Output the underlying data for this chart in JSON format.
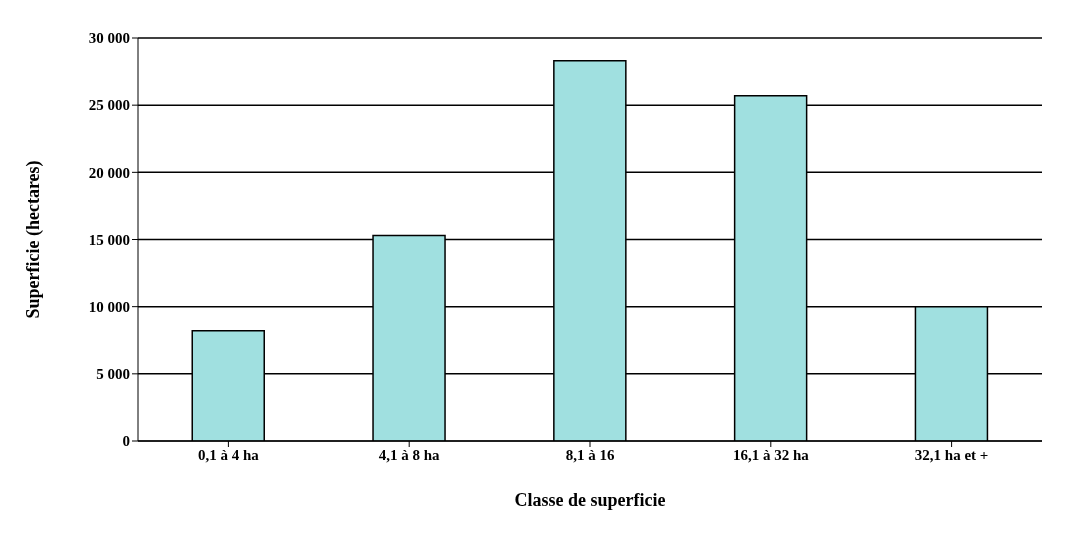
{
  "chart_data": {
    "type": "bar",
    "xlabel": "Classe de superficie",
    "ylabel": "Superficie (hectares)",
    "categories": [
      "0,1 à 4 ha",
      "4,1 à 8 ha",
      "8,1 à 16",
      "16,1 à 32 ha",
      "32,1 ha et +"
    ],
    "values": [
      8200,
      15300,
      28300,
      25700,
      10000
    ],
    "color": "#a0e0e0",
    "ylim": [
      0,
      30000
    ],
    "yticks": [
      {
        "value": 0,
        "label": "0"
      },
      {
        "value": 5000,
        "label": "5 000"
      },
      {
        "value": 10000,
        "label": "10 000"
      },
      {
        "value": 15000,
        "label": "15 000"
      },
      {
        "value": 20000,
        "label": "20 000"
      },
      {
        "value": 25000,
        "label": "25 000"
      },
      {
        "value": 30000,
        "label": "30 000"
      }
    ],
    "grid": "y"
  }
}
